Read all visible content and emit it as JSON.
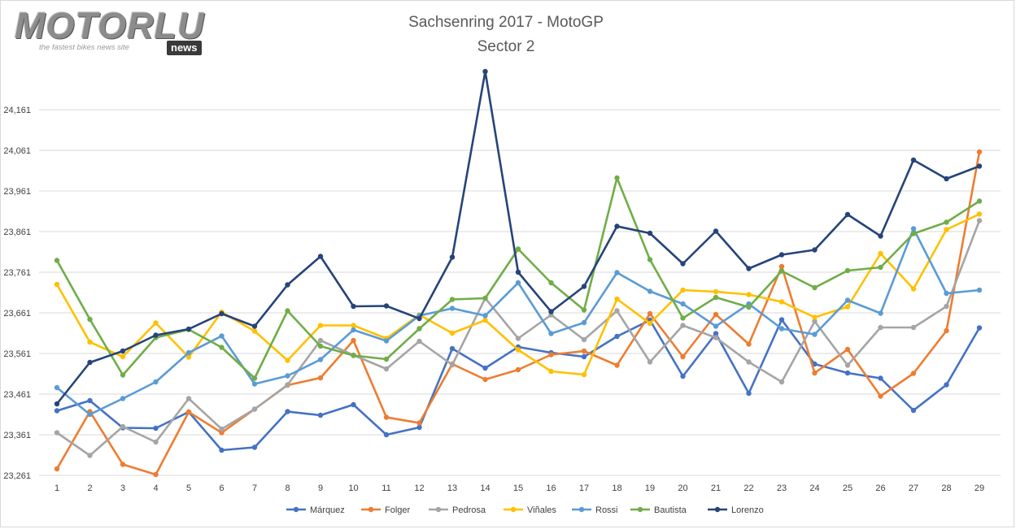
{
  "logo": {
    "brand": "MOTORLU",
    "tagline": "the fastest bikes news site",
    "badge": "news"
  },
  "chart_data": {
    "type": "line",
    "title": "Sachsenring 2017 - MotoGP",
    "subtitle": "Sector 2",
    "xlabel": "",
    "ylabel": "",
    "x": [
      1,
      2,
      3,
      4,
      5,
      6,
      7,
      8,
      9,
      10,
      11,
      12,
      13,
      14,
      15,
      16,
      17,
      18,
      19,
      20,
      21,
      22,
      23,
      24,
      25,
      26,
      27,
      28,
      29
    ],
    "ylim": [
      23.261,
      24.261
    ],
    "yticks": [
      23.261,
      23.361,
      23.461,
      23.561,
      23.661,
      23.761,
      23.861,
      23.961,
      24.061,
      24.161
    ],
    "ytick_labels": [
      "23,261",
      "23,361",
      "23,461",
      "23,561",
      "23,661",
      "23,761",
      "23,861",
      "23,961",
      "24,061",
      "24,161"
    ],
    "grid": true,
    "legend_position": "bottom",
    "series": [
      {
        "name": "Márquez",
        "color": "#4472c4",
        "values": [
          23.42,
          23.445,
          23.378,
          23.377,
          23.417,
          23.323,
          23.33,
          23.418,
          23.409,
          23.435,
          23.361,
          23.379,
          23.573,
          23.525,
          23.577,
          23.563,
          23.553,
          23.603,
          23.643,
          23.505,
          23.61,
          23.463,
          23.644,
          23.535,
          23.513,
          23.5,
          23.421,
          23.484,
          23.624
        ]
      },
      {
        "name": "Folger",
        "color": "#ed7d31",
        "values": [
          23.277,
          23.418,
          23.288,
          23.263,
          23.417,
          23.366,
          23.424,
          23.483,
          23.501,
          23.593,
          23.404,
          23.39,
          23.535,
          23.497,
          23.521,
          23.558,
          23.567,
          23.532,
          23.659,
          23.553,
          23.657,
          23.584,
          23.775,
          23.513,
          23.571,
          23.456,
          23.512,
          23.617,
          24.057
        ]
      },
      {
        "name": "Pedrosa",
        "color": "#a5a5a5",
        "values": [
          23.366,
          23.31,
          23.381,
          23.343,
          23.45,
          23.375,
          23.424,
          23.484,
          23.593,
          23.557,
          23.523,
          23.591,
          23.533,
          23.697,
          23.598,
          23.656,
          23.595,
          23.666,
          23.54,
          23.63,
          23.6,
          23.54,
          23.491,
          23.64,
          23.532,
          23.625,
          23.625,
          23.677,
          23.888
        ]
      },
      {
        "name": "Viñales",
        "color": "#ffc000",
        "values": [
          23.731,
          23.589,
          23.553,
          23.636,
          23.552,
          23.663,
          23.616,
          23.544,
          23.63,
          23.63,
          23.598,
          23.656,
          23.611,
          23.643,
          23.57,
          23.517,
          23.509,
          23.695,
          23.635,
          23.717,
          23.713,
          23.706,
          23.688,
          23.65,
          23.676,
          23.807,
          23.72,
          23.866,
          23.904
        ]
      },
      {
        "name": "Rossi",
        "color": "#5b9bd5",
        "values": [
          23.477,
          23.411,
          23.45,
          23.491,
          23.563,
          23.604,
          23.486,
          23.506,
          23.546,
          23.619,
          23.592,
          23.654,
          23.672,
          23.654,
          23.735,
          23.61,
          23.637,
          23.76,
          23.714,
          23.683,
          23.628,
          23.683,
          23.622,
          23.608,
          23.692,
          23.66,
          23.868,
          23.709,
          23.717
        ]
      },
      {
        "name": "Bautista",
        "color": "#70ad47",
        "values": [
          23.79,
          23.645,
          23.508,
          23.6,
          23.62,
          23.576,
          23.5,
          23.666,
          23.579,
          23.556,
          23.547,
          23.622,
          23.694,
          23.697,
          23.818,
          23.735,
          23.668,
          23.993,
          23.792,
          23.648,
          23.699,
          23.675,
          23.764,
          23.723,
          23.765,
          23.773,
          23.856,
          23.884,
          23.936
        ]
      },
      {
        "name": "Lorenzo",
        "color": "#264478",
        "values": [
          23.437,
          23.539,
          23.567,
          23.606,
          23.621,
          23.659,
          23.628,
          23.73,
          23.8,
          23.677,
          23.678,
          23.647,
          23.798,
          24.255,
          23.761,
          23.664,
          23.726,
          23.874,
          23.857,
          23.782,
          23.862,
          23.77,
          23.804,
          23.816,
          23.903,
          23.85,
          24.037,
          23.991,
          24.022
        ]
      }
    ]
  }
}
